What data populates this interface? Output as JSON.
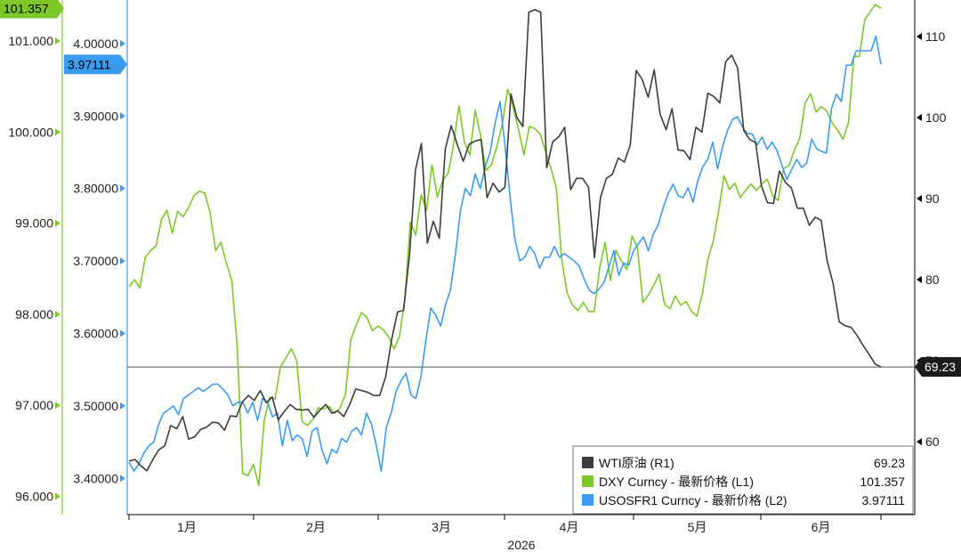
{
  "chart_data": {
    "type": "line",
    "x_axis": {
      "months": [
        "1月",
        "2月",
        "3月",
        "4月",
        "5月",
        "6月"
      ],
      "year": "2026"
    },
    "axes": {
      "L1": {
        "ticks": [
          "96.000",
          "97.000",
          "98.000",
          "99.000",
          "100.000",
          "101.000"
        ],
        "tick_values": [
          96,
          97,
          98,
          99,
          100,
          101
        ],
        "range": [
          95.8,
          101.45
        ],
        "color": "#7dc828"
      },
      "L2": {
        "ticks": [
          "3.40000",
          "3.50000",
          "3.60000",
          "3.70000",
          "3.80000",
          "3.90000",
          "4.00000"
        ],
        "tick_values": [
          3.4,
          3.5,
          3.6,
          3.7,
          3.8,
          3.9,
          4.0
        ],
        "range": [
          3.35,
          4.06
        ],
        "color": "#3a9bef"
      },
      "R1": {
        "ticks": [
          "60",
          "70",
          "80",
          "90",
          "100",
          "110"
        ],
        "tick_values": [
          60,
          70,
          80,
          90,
          100,
          110
        ],
        "range": [
          51,
          114.5
        ],
        "color": "#000000"
      }
    },
    "reference_line": {
      "axis": "R1",
      "value": 69.23
    },
    "badges": {
      "L1": {
        "label": "101.357",
        "value": 101.357,
        "bg": "#7dc828"
      },
      "L2": {
        "label": "3.97111",
        "value": 3.97111,
        "bg": "#3a9bef"
      },
      "R1": {
        "label": "69.23",
        "value": 69.23,
        "bg": "#1c1c1c"
      }
    },
    "legend": {
      "position": "bottom-right",
      "entries": [
        {
          "name": "WTI原油 (R1)",
          "value": "69.23",
          "color": "#3c3c3c"
        },
        {
          "name": "DXY Curncy - 最新价格 (L1)",
          "value": "101.357",
          "color": "#7dc828"
        },
        {
          "name": "USOSFR1 Curncy - 最新价格 (L2)",
          "value": "3.97111",
          "color": "#3a9bef"
        }
      ]
    },
    "series": [
      {
        "name": "WTI原油 (R1)",
        "axis": "R1",
        "color": "#3c3c3c",
        "x_start": 0,
        "x_step": 0.8,
        "values": [
          57.6,
          57.8,
          57,
          56.4,
          57.8,
          59,
          59.5,
          62,
          61.6,
          63.1,
          60.3,
          60.6,
          61.5,
          61.8,
          62.4,
          62.3,
          61.4,
          63.2,
          63.1,
          64.9,
          65.7,
          65.1,
          66.3,
          64.8,
          65.5,
          62.7,
          63.7,
          64.6,
          64,
          63.9,
          64,
          63,
          63.9,
          64.6,
          63.5,
          63.8,
          63.1,
          64.6,
          66.5,
          66.3,
          66.1,
          65.7,
          65.7,
          68,
          72.6,
          76,
          76.2,
          83,
          93.5,
          96.8,
          84.5,
          87.2,
          85.1,
          96.1,
          99,
          96.7,
          94.6,
          96.7,
          97.1,
          97.3,
          90.1,
          91.9,
          90.8,
          91.4,
          102.9,
          100,
          98.9,
          113,
          113.3,
          113,
          93.8,
          97,
          97.6,
          98.8,
          91.1,
          92.5,
          92.5,
          91.4,
          82.7,
          90.1,
          92.5,
          93,
          95,
          94.5,
          96.6,
          105.8,
          104.7,
          102.5,
          105.9,
          100.4,
          98.5,
          101.1,
          96,
          95.9,
          94.8,
          98.8,
          98.2,
          103,
          102.6,
          101.8,
          106.9,
          107.7,
          106.1,
          98.4,
          97.3,
          96.9,
          91.5,
          89.5,
          89.4,
          93.4,
          92,
          91.3,
          88.8,
          88.8,
          86.7,
          87.7,
          87.3,
          82.3,
          79.5,
          74.8,
          74.3,
          74.1,
          73.1,
          71.9,
          70.8,
          69.6,
          69.23
        ]
      },
      {
        "name": "DXY Curncy - 最新价格 (L1)",
        "axis": "L1",
        "color": "#7dc828",
        "x_start": 0,
        "x_step": 0.8,
        "values": [
          98.3,
          98.38,
          98.29,
          98.62,
          98.7,
          98.75,
          99.04,
          99.14,
          98.89,
          99.13,
          99.07,
          99.17,
          99.3,
          99.35,
          99.33,
          99.11,
          98.7,
          98.79,
          98.56,
          98.37,
          97.65,
          96.25,
          96.23,
          96.35,
          96.12,
          96.84,
          97.09,
          97.07,
          97.42,
          97.52,
          97.62,
          97.49,
          96.82,
          96.78,
          96.85,
          96.97,
          96.96,
          96.99,
          96.91,
          96.97,
          97.12,
          97.72,
          97.88,
          98.02,
          97.96,
          97.82,
          97.87,
          97.83,
          97.75,
          97.62,
          97.76,
          98.17,
          99.01,
          98.87,
          99.31,
          99.14,
          99.64,
          99.29,
          99.47,
          99.55,
          99.86,
          100.29,
          99.89,
          99.75,
          100.24,
          99.96,
          99.58,
          99.64,
          99.84,
          100.09,
          100.47,
          100.28,
          100.03,
          99.75,
          100.06,
          100.04,
          99.98,
          99.79,
          99.6,
          99.38,
          98.6,
          98.23,
          98.1,
          98.04,
          98.13,
          98.03,
          98.03,
          98.51,
          98.79,
          98.37,
          98.7,
          98.59,
          98.49,
          98.86,
          98.73,
          98.13,
          98.21,
          98.32,
          98.44,
          98.11,
          98.06,
          98.2,
          98.1,
          98.14,
          98.03,
          97.98,
          98.23,
          98.6,
          98.8,
          99.13,
          99.52,
          99.37,
          99.44,
          99.28,
          99.36,
          99.43,
          99.36,
          99.43,
          99.48,
          99.3,
          99.25,
          99.6,
          99.63,
          99.8,
          99.93,
          100.32,
          100.42,
          100.22,
          100.28,
          100.23,
          100.1,
          100.02,
          99.92,
          100.1,
          100.83,
          100.83,
          101.23,
          101.32,
          101.4,
          101.36
        ]
      },
      {
        "name": "USOSFR1 Curncy - 最新价格 (L2)",
        "axis": "L2",
        "color": "#3a9bef",
        "x_start": 0,
        "x_step": 0.8,
        "values": [
          3.422,
          3.41,
          3.42,
          3.435,
          3.445,
          3.45,
          3.475,
          3.49,
          3.495,
          3.5,
          3.488,
          3.51,
          3.515,
          3.52,
          3.525,
          3.52,
          3.525,
          3.53,
          3.53,
          3.523,
          3.515,
          3.5,
          3.505,
          3.505,
          3.49,
          3.505,
          3.48,
          3.51,
          3.505,
          3.485,
          3.49,
          3.445,
          3.48,
          3.452,
          3.46,
          3.455,
          3.43,
          3.465,
          3.47,
          3.44,
          3.42,
          3.44,
          3.435,
          3.455,
          3.45,
          3.465,
          3.47,
          3.46,
          3.49,
          3.475,
          3.445,
          3.41,
          3.47,
          3.49,
          3.52,
          3.535,
          3.545,
          3.515,
          3.51,
          3.54,
          3.59,
          3.635,
          3.625,
          3.61,
          3.64,
          3.66,
          3.71,
          3.77,
          3.8,
          3.79,
          3.82,
          3.8,
          3.83,
          3.85,
          3.89,
          3.92,
          3.86,
          3.79,
          3.73,
          3.7,
          3.705,
          3.72,
          3.71,
          3.69,
          3.705,
          3.705,
          3.72,
          3.705,
          3.71,
          3.705,
          3.7,
          3.693,
          3.675,
          3.66,
          3.655,
          3.661,
          3.67,
          3.691,
          3.714,
          3.68,
          3.697,
          3.694,
          3.714,
          3.724,
          3.733,
          3.714,
          3.737,
          3.75,
          3.774,
          3.793,
          3.806,
          3.79,
          3.787,
          3.801,
          3.781,
          3.811,
          3.83,
          3.84,
          3.864,
          3.827,
          3.858,
          3.88,
          3.895,
          3.899,
          3.885,
          3.876,
          3.875,
          3.86,
          3.871,
          3.854,
          3.864,
          3.852,
          3.832,
          3.812,
          3.827,
          3.84,
          3.829,
          3.835,
          3.868,
          3.855,
          3.851,
          3.849,
          3.91,
          3.93,
          3.92,
          3.97,
          3.97,
          3.99,
          3.99,
          3.99,
          3.99,
          4.01,
          3.97111
        ]
      }
    ]
  }
}
